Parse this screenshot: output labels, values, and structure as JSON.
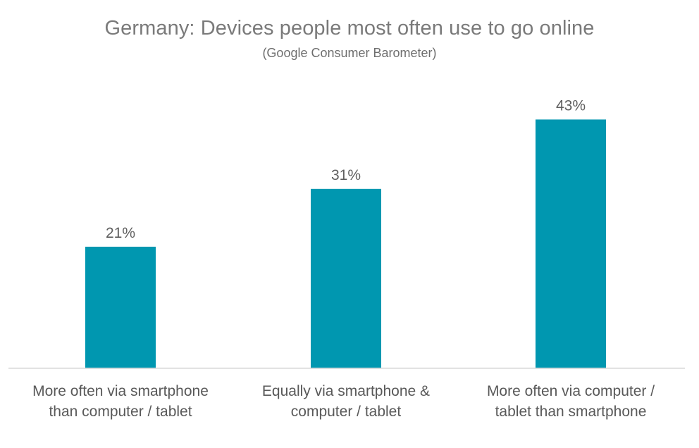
{
  "chart_data": {
    "type": "bar",
    "title": "Germany: Devices people most often use to go online",
    "subtitle": "(Google Consumer Barometer)",
    "categories": [
      [
        "More often via smartphone",
        "than computer / tablet"
      ],
      [
        "Equally via smartphone &",
        "computer / tablet"
      ],
      [
        "More often via computer /",
        "tablet than smartphone"
      ]
    ],
    "values": [
      21,
      31,
      43
    ],
    "data_labels": [
      "21%",
      "31%",
      "43%"
    ],
    "unit": "%",
    "ylim": [
      0,
      50
    ],
    "grid": false,
    "legend": "none",
    "bar_color": "#0097b0",
    "axis_color": "#d9d9d9"
  }
}
